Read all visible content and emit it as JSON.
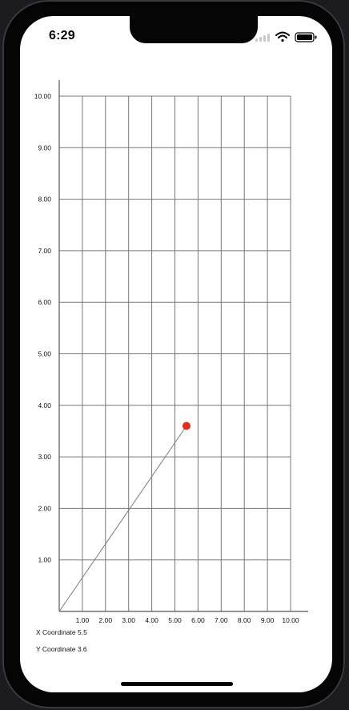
{
  "status_bar": {
    "time": "6:29",
    "icons": [
      "signal-icon",
      "wifi-icon",
      "battery-icon"
    ]
  },
  "readout": {
    "x_label": "X Coordinate",
    "x_value": "5.5",
    "y_label": "Y Coordinate",
    "y_value": "3.6"
  },
  "colors": {
    "grid": "#777777",
    "marker": "#e82a17",
    "line": "#7a7a7a"
  },
  "chart_data": {
    "type": "line",
    "title": "",
    "xlabel": "",
    "ylabel": "",
    "xlim": [
      0,
      10
    ],
    "ylim": [
      0,
      10
    ],
    "grid": true,
    "x_ticks": [
      "1.00",
      "2.00",
      "3.00",
      "4.00",
      "5.00",
      "6.00",
      "7.00",
      "8.00",
      "9.00",
      "10.00"
    ],
    "y_ticks": [
      "1.00",
      "2.00",
      "3.00",
      "4.00",
      "5.00",
      "6.00",
      "7.00",
      "8.00",
      "9.00",
      "10.00"
    ],
    "series": [
      {
        "x": [
          0,
          5.5
        ],
        "y": [
          0,
          3.6
        ]
      }
    ],
    "marker_point": {
      "x": 5.5,
      "y": 3.6
    }
  }
}
